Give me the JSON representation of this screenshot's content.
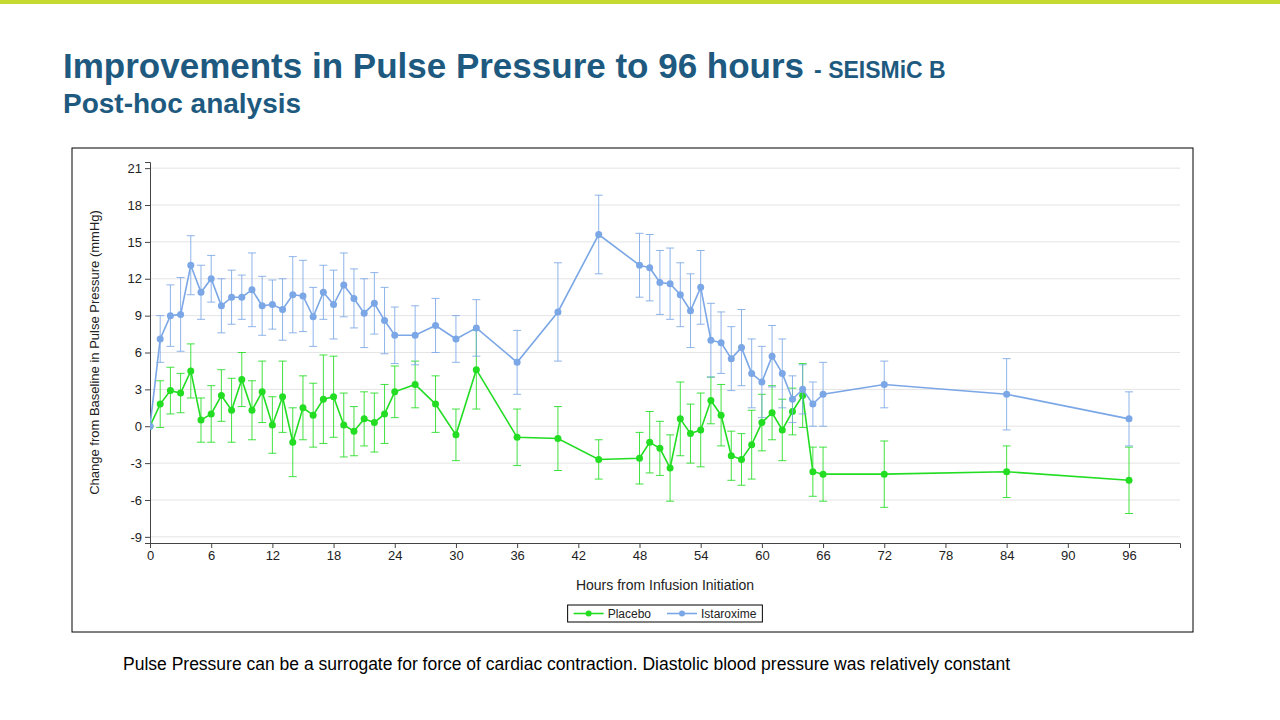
{
  "chart_data": {
    "type": "line",
    "title": "Improvements in Pulse Pressure to 96 hours",
    "subtitle": "Post-hoc analysis",
    "annotations": [
      "- SEISMiC B",
      "Pulse Pressure can be a surrogate for force of cardiac contraction. Diastolic blood pressure was relatively constant"
    ],
    "x_label": "Hours from Infusion Initiation",
    "y_label": "Change from Baseline in Pulse Pressure (mmHg)",
    "xlim": [
      0,
      101
    ],
    "xticks": [
      0,
      6,
      12,
      18,
      24,
      30,
      36,
      42,
      48,
      54,
      60,
      66,
      72,
      78,
      84,
      90,
      96
    ],
    "ylim": [
      -9.5,
      21.5
    ],
    "yticks": [
      -9,
      -6,
      -3,
      0,
      3,
      6,
      9,
      12,
      15,
      18,
      21
    ],
    "grid": true,
    "legend": "bottom",
    "x": [
      0,
      1,
      2,
      3,
      4,
      5,
      6,
      7,
      8,
      9,
      10,
      11,
      12,
      13,
      14,
      15,
      16,
      17,
      18,
      19,
      20,
      21,
      22,
      23,
      24,
      26,
      28,
      30,
      32,
      36,
      40,
      44,
      48,
      49,
      50,
      51,
      52,
      53,
      54,
      55,
      56,
      57,
      58,
      59,
      60,
      61,
      62,
      63,
      64,
      65,
      66,
      72,
      84,
      96
    ],
    "series": [
      {
        "name": "Placebo",
        "color": "#22dd22",
        "marker": "circle",
        "line_style": "solid",
        "values": [
          0,
          1.8,
          2.9,
          2.7,
          4.5,
          0.5,
          1.0,
          2.5,
          1.3,
          3.8,
          1.3,
          2.8,
          0.1,
          2.4,
          -1.3,
          1.5,
          0.9,
          2.2,
          2.4,
          0.1,
          -0.4,
          0.6,
          0.3,
          1.0,
          2.8,
          3.4,
          1.8,
          -0.7,
          4.6,
          -0.9,
          -1.0,
          -2.7,
          -2.6,
          -1.3,
          -1.8,
          -3.4,
          0.6,
          -0.6,
          -0.3,
          2.1,
          0.9,
          -2.4,
          -2.7,
          -1.5,
          0.3,
          1.1,
          -0.3,
          1.2,
          2.5,
          -3.7,
          -3.9,
          -3.9,
          -3.7,
          -4.4
        ],
        "errors": [
          null,
          1.9,
          1.9,
          1.6,
          2.2,
          1.8,
          2.3,
          2.1,
          2.6,
          2.2,
          2.4,
          2.5,
          2.3,
          2.9,
          2.8,
          2.6,
          2.6,
          3.6,
          3.3,
          2.6,
          2.0,
          2.2,
          2.4,
          2.4,
          2.1,
          1.9,
          2.3,
          2.1,
          3.2,
          2.3,
          2.6,
          1.6,
          2.1,
          2.5,
          2.2,
          2.7,
          3.0,
          2.4,
          3.0,
          1.9,
          2.5,
          2.0,
          2.1,
          2.8,
          2.3,
          2.2,
          2.5,
          1.9,
          2.6,
          2.0,
          2.2,
          2.7,
          2.1,
          2.7
        ]
      },
      {
        "name": "Istaroxime",
        "color": "#7ba7e6",
        "marker": "circle",
        "line_style": "solid",
        "values": [
          0,
          7.1,
          9.0,
          9.1,
          13.1,
          10.9,
          12.0,
          9.8,
          10.5,
          10.5,
          11.1,
          9.8,
          9.9,
          9.5,
          10.7,
          10.6,
          8.9,
          10.9,
          9.9,
          11.5,
          10.4,
          9.2,
          10.0,
          8.6,
          7.4,
          7.4,
          8.2,
          7.1,
          8.0,
          5.2,
          9.3,
          15.6,
          13.1,
          12.9,
          11.7,
          11.6,
          10.7,
          9.4,
          11.3,
          7.0,
          6.8,
          5.5,
          6.4,
          4.3,
          3.6,
          5.7,
          4.3,
          2.2,
          3.0,
          1.8,
          2.6,
          3.4,
          2.6,
          0.6
        ],
        "errors": [
          null,
          1.9,
          2.5,
          3.0,
          2.4,
          2.2,
          1.9,
          2.2,
          2.2,
          1.8,
          3.0,
          2.4,
          2.0,
          2.5,
          3.1,
          2.9,
          2.4,
          2.2,
          2.8,
          2.6,
          2.4,
          2.8,
          2.5,
          2.7,
          2.3,
          2.4,
          2.2,
          1.9,
          2.3,
          2.6,
          4.0,
          3.2,
          2.6,
          2.7,
          2.6,
          2.9,
          2.6,
          3.0,
          3.0,
          3.0,
          2.5,
          2.6,
          3.1,
          2.8,
          2.9,
          2.5,
          2.8,
          1.9,
          2.0,
          1.8,
          2.6,
          1.9,
          2.9,
          2.2
        ]
      }
    ]
  }
}
